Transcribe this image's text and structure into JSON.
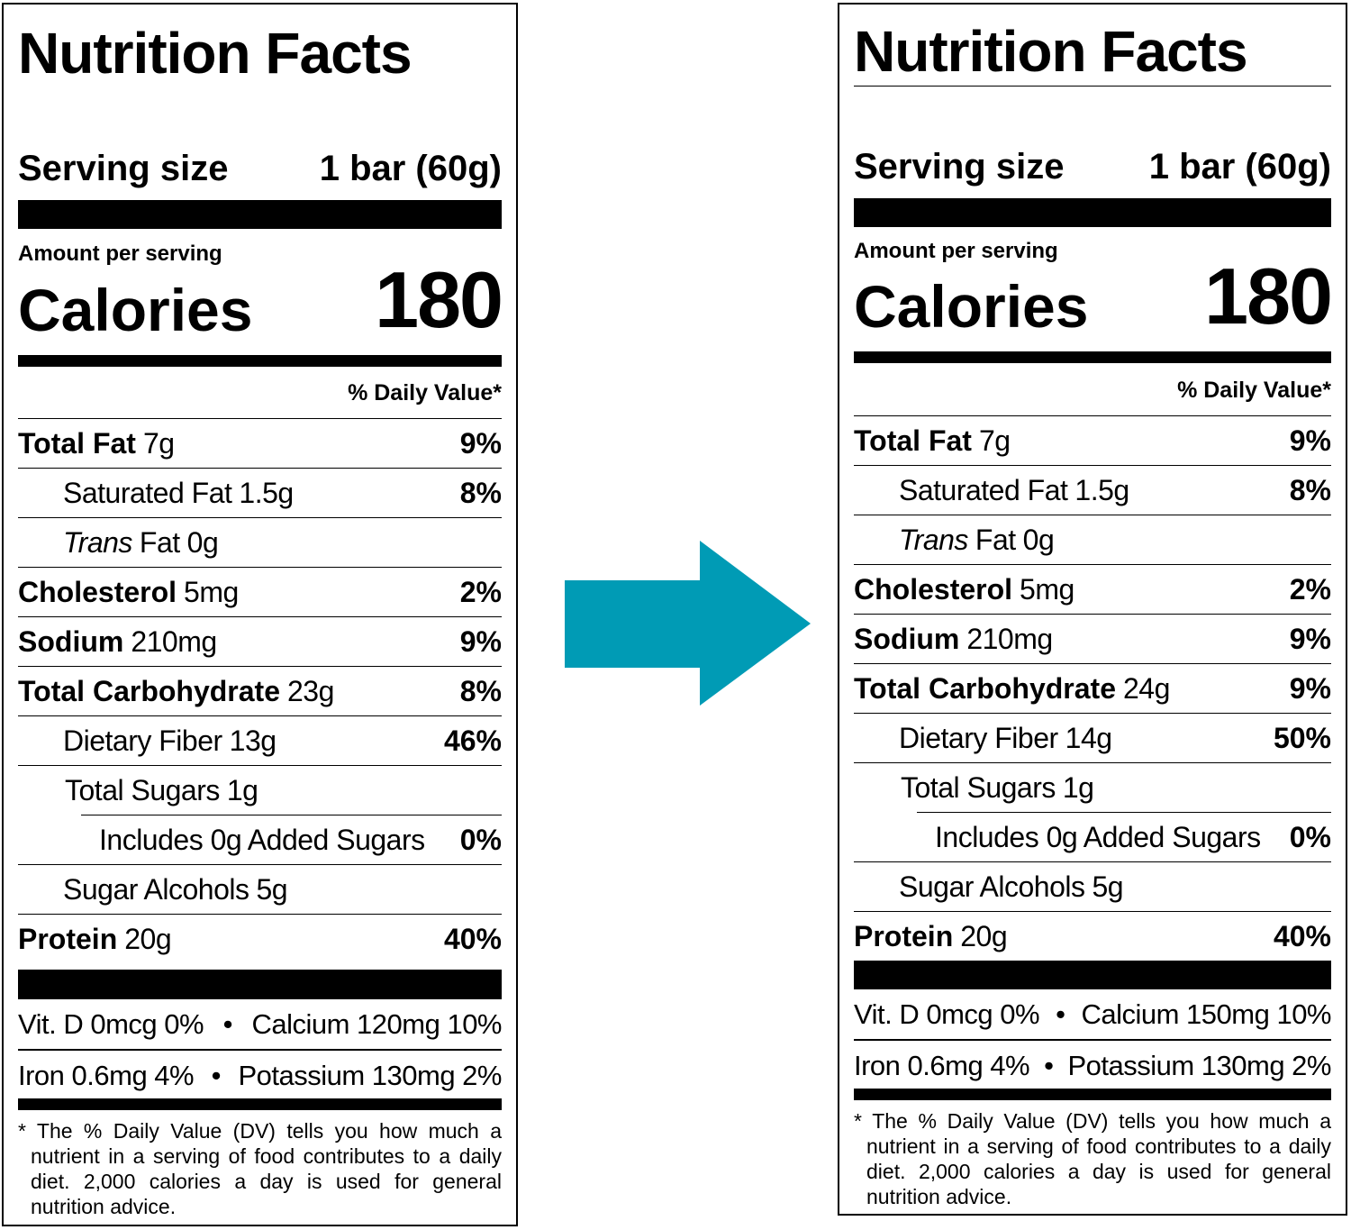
{
  "labels": [
    {
      "title": "Nutrition Facts",
      "serving_label": "Serving size",
      "serving_value": "1 bar (60g)",
      "amount_per_serving": "Amount per serving",
      "calories_label": "Calories",
      "calories_value": "180",
      "dv_header": "% Daily Value*",
      "nutrients": [
        {
          "name": "Total Fat",
          "amount": "7g",
          "dv": "9%"
        },
        {
          "name": "Saturated Fat",
          "amount": "1.5g",
          "dv": "8%"
        },
        {
          "name_italic": "Trans",
          "name": "Fat",
          "amount": "0g",
          "dv": ""
        },
        {
          "name": "Cholesterol",
          "amount": "5mg",
          "dv": "2%"
        },
        {
          "name": "Sodium",
          "amount": "210mg",
          "dv": "9%"
        },
        {
          "name": "Total Carbohydrate",
          "amount": "23g",
          "dv": "8%"
        },
        {
          "name": "Dietary Fiber",
          "amount": "13g",
          "dv": "46%"
        },
        {
          "name": "Total Sugars",
          "amount": "1g",
          "dv": ""
        },
        {
          "name": "Includes 0g Added Sugars",
          "amount": "",
          "dv": "0%"
        },
        {
          "name": "Sugar Alcohols",
          "amount": "5g",
          "dv": ""
        },
        {
          "name": "Protein",
          "amount": "20g",
          "dv": "40%"
        }
      ],
      "vitamins": [
        {
          "left": "Vit. D 0mcg 0%",
          "right": "Calcium 120mg 10%"
        },
        {
          "left": "Iron 0.6mg 4%",
          "right": "Potassium 130mg 2%"
        }
      ],
      "footnote": "* The % Daily Value (DV) tells you how much a nutrient in a serving of food contributes to a daily diet. 2,000 calories a day is used for general nutrition advice."
    },
    {
      "title": "Nutrition Facts",
      "serving_label": "Serving size",
      "serving_value": "1 bar (60g)",
      "amount_per_serving": "Amount per serving",
      "calories_label": "Calories",
      "calories_value": "180",
      "dv_header": "% Daily Value*",
      "nutrients": [
        {
          "name": "Total Fat",
          "amount": "7g",
          "dv": "9%"
        },
        {
          "name": "Saturated Fat",
          "amount": "1.5g",
          "dv": "8%"
        },
        {
          "name_italic": "Trans",
          "name": "Fat",
          "amount": "0g",
          "dv": ""
        },
        {
          "name": "Cholesterol",
          "amount": "5mg",
          "dv": "2%"
        },
        {
          "name": "Sodium",
          "amount": "210mg",
          "dv": "9%"
        },
        {
          "name": "Total Carbohydrate",
          "amount": "24g",
          "dv": "9%"
        },
        {
          "name": "Dietary Fiber",
          "amount": "14g",
          "dv": "50%"
        },
        {
          "name": "Total Sugars",
          "amount": "1g",
          "dv": ""
        },
        {
          "name": "Includes 0g Added Sugars",
          "amount": "",
          "dv": "0%"
        },
        {
          "name": "Sugar Alcohols",
          "amount": "5g",
          "dv": ""
        },
        {
          "name": "Protein",
          "amount": "20g",
          "dv": "40%"
        }
      ],
      "vitamins": [
        {
          "left": "Vit. D 0mcg 0%",
          "right": "Calcium 150mg 10%"
        },
        {
          "left": "Iron 0.6mg 4%",
          "right": "Potassium 130mg 2%"
        }
      ],
      "footnote": "* The % Daily Value (DV) tells you how much a nutrient in a serving of food contributes to a daily diet. 2,000 calories a day is used for general nutrition advice."
    }
  ],
  "arrow": {
    "color": "#009bb5",
    "icon": "arrow-right-icon"
  }
}
